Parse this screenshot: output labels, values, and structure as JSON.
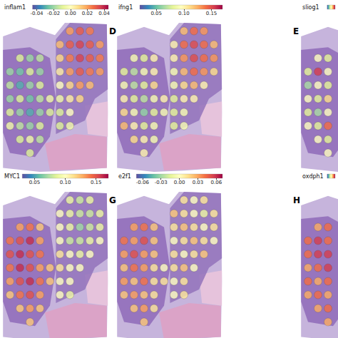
{
  "chart_data": [
    {
      "type": "scatter",
      "title": "inflam1",
      "tick_labels": false,
      "colorbar": {
        "range": [
          -0.045,
          0.045
        ],
        "ticks": [
          -0.04,
          -0.02,
          {
            "value": 0,
            "label": "0.00"
          },
          0.02,
          0.04
        ]
      },
      "cells": [
        [
          null,
          null,
          null,
          null,
          null,
          null,
          0.02,
          0.03,
          0.025,
          null
        ],
        [
          null,
          null,
          null,
          null,
          null,
          0.015,
          0.03,
          0.035,
          0.03,
          0.02
        ],
        [
          null,
          -0.01,
          -0.02,
          -0.015,
          null,
          0.01,
          0.025,
          0.035,
          0.03,
          0.025
        ],
        [
          -0.02,
          -0.025,
          -0.01,
          -0.02,
          null,
          0.005,
          0.02,
          0.03,
          0.025,
          0.02
        ],
        [
          -0.015,
          -0.03,
          -0.02,
          -0.01,
          null,
          0.0,
          0.01,
          0.02,
          0.015,
          null
        ],
        [
          -0.02,
          -0.01,
          -0.025,
          -0.015,
          -0.005,
          -0.005,
          0.005,
          0.01,
          null,
          null
        ],
        [
          -0.01,
          -0.02,
          -0.03,
          -0.02,
          -0.01,
          -0.01,
          0.0,
          null,
          null,
          null
        ],
        [
          -0.005,
          -0.015,
          -0.02,
          -0.01,
          null,
          -0.01,
          -0.005,
          null,
          null,
          null
        ],
        [
          null,
          -0.01,
          -0.005,
          -0.015,
          null,
          null,
          null,
          null,
          null,
          null
        ],
        [
          null,
          null,
          -0.01,
          null,
          null,
          null,
          null,
          null,
          null,
          null
        ]
      ]
    },
    {
      "type": "scatter",
      "title": "ifng1",
      "panel": "D",
      "tick_labels": false,
      "colorbar": {
        "range": [
          0.02,
          0.17
        ],
        "ticks": [
          0.05,
          {
            "value": 0.1,
            "label": "0.10"
          },
          0.15
        ]
      },
      "cells": [
        [
          null,
          null,
          null,
          null,
          null,
          null,
          0.12,
          0.14,
          0.13,
          null
        ],
        [
          null,
          null,
          null,
          null,
          null,
          0.1,
          0.14,
          0.15,
          0.14,
          0.12
        ],
        [
          null,
          0.09,
          0.08,
          0.1,
          null,
          0.1,
          0.13,
          0.15,
          0.14,
          0.13
        ],
        [
          0.08,
          0.07,
          0.09,
          0.1,
          null,
          0.09,
          0.12,
          0.14,
          0.13,
          0.11
        ],
        [
          0.09,
          0.07,
          0.08,
          0.11,
          null,
          0.09,
          0.11,
          0.12,
          0.1,
          null
        ],
        [
          0.1,
          0.08,
          0.07,
          0.09,
          0.1,
          0.08,
          0.1,
          0.1,
          null,
          null
        ],
        [
          0.11,
          0.09,
          0.06,
          0.08,
          0.09,
          0.08,
          0.09,
          null,
          null,
          null
        ],
        [
          0.12,
          0.1,
          0.08,
          0.09,
          null,
          0.08,
          0.09,
          null,
          null,
          null
        ],
        [
          null,
          0.11,
          0.1,
          0.09,
          null,
          null,
          null,
          null,
          null,
          null
        ],
        [
          null,
          null,
          0.1,
          null,
          null,
          null,
          null,
          null,
          null,
          null
        ]
      ]
    },
    {
      "type": "scatter",
      "title": "sliog1",
      "panel": "E",
      "tick_labels": false,
      "colorbar": {
        "range": [
          0.0,
          0.1
        ]
      },
      "cells": [
        [
          null,
          null,
          null
        ],
        [
          null,
          null,
          null
        ],
        [
          null,
          0.05,
          0.04
        ],
        [
          0.04,
          0.09,
          0.05
        ],
        [
          0.03,
          0.05,
          0.04
        ],
        [
          0.05,
          0.04,
          0.06
        ],
        [
          0.04,
          0.03,
          0.05
        ],
        [
          0.05,
          0.04,
          0.08
        ],
        [
          null,
          0.05,
          0.04
        ],
        [
          null,
          null,
          0.05
        ]
      ]
    },
    {
      "type": "scatter",
      "title": "MYC1",
      "tick_labels": false,
      "colorbar": {
        "range": [
          0.03,
          0.17
        ],
        "ticks": [
          0.05,
          {
            "value": 0.1,
            "label": "0.10"
          },
          0.15
        ]
      },
      "cells": [
        [
          null,
          null,
          null,
          null,
          null,
          null,
          0.09,
          0.08,
          0.09,
          null
        ],
        [
          null,
          null,
          null,
          null,
          null,
          0.1,
          0.09,
          0.08,
          0.08,
          0.09
        ],
        [
          null,
          0.13,
          0.14,
          0.12,
          null,
          0.1,
          0.09,
          0.07,
          0.08,
          0.09
        ],
        [
          0.14,
          0.15,
          0.16,
          0.13,
          null,
          0.1,
          0.08,
          0.08,
          0.09,
          0.1
        ],
        [
          0.15,
          0.16,
          0.15,
          0.14,
          null,
          0.11,
          0.1,
          0.09,
          0.1,
          null
        ],
        [
          0.14,
          0.16,
          0.15,
          0.13,
          0.12,
          0.11,
          0.1,
          0.1,
          null,
          null
        ],
        [
          0.13,
          0.15,
          0.16,
          0.14,
          0.12,
          0.1,
          0.1,
          null,
          null,
          null
        ],
        [
          0.12,
          0.14,
          0.15,
          0.13,
          null,
          0.1,
          0.09,
          null,
          null,
          null
        ],
        [
          null,
          0.12,
          0.13,
          0.12,
          null,
          null,
          null,
          null,
          null,
          null
        ],
        [
          null,
          null,
          0.12,
          null,
          null,
          null,
          null,
          null,
          null,
          null
        ]
      ]
    },
    {
      "type": "scatter",
      "title": "e2f1",
      "panel": "G",
      "tick_labels": false,
      "colorbar": {
        "range": [
          -0.07,
          0.07
        ],
        "ticks": [
          -0.06,
          -0.03,
          {
            "value": 0,
            "label": "0.00"
          },
          0.03,
          0.06
        ]
      },
      "cells": [
        [
          null,
          null,
          null,
          null,
          null,
          null,
          0.01,
          0.0,
          0.01,
          null
        ],
        [
          null,
          null,
          null,
          null,
          null,
          0.02,
          0.01,
          0.0,
          -0.01,
          0.01
        ],
        [
          null,
          0.03,
          0.04,
          0.02,
          null,
          0.01,
          0.02,
          0.01,
          0.0,
          0.01
        ],
        [
          0.04,
          0.03,
          0.05,
          0.02,
          null,
          0.0,
          0.01,
          0.02,
          0.01,
          0.0
        ],
        [
          0.03,
          0.05,
          0.03,
          0.02,
          null,
          0.01,
          0.0,
          0.01,
          0.02,
          null
        ],
        [
          0.02,
          0.04,
          0.03,
          0.01,
          0.0,
          0.01,
          0.02,
          0.0,
          null,
          null
        ],
        [
          0.03,
          0.02,
          0.04,
          0.01,
          0.01,
          0.0,
          0.01,
          null,
          null,
          null
        ],
        [
          0.02,
          0.03,
          0.02,
          0.01,
          null,
          0.0,
          0.01,
          null,
          null,
          null
        ],
        [
          null,
          0.02,
          0.03,
          0.01,
          null,
          null,
          null,
          null,
          null,
          null
        ],
        [
          null,
          null,
          0.02,
          null,
          null,
          null,
          null,
          null,
          null,
          null
        ]
      ]
    },
    {
      "type": "scatter",
      "title": "oxdph1",
      "panel": "H",
      "tick_labels": false,
      "colorbar": {
        "range": [
          0.0,
          0.1
        ]
      },
      "cells": [
        [
          null,
          null,
          null
        ],
        [
          null,
          null,
          null
        ],
        [
          null,
          0.07,
          0.08
        ],
        [
          0.08,
          0.09,
          0.08
        ],
        [
          0.08,
          0.09,
          0.09
        ],
        [
          0.07,
          0.08,
          0.09
        ],
        [
          0.08,
          0.07,
          0.08
        ],
        [
          0.07,
          0.08,
          0.07
        ],
        [
          null,
          0.07,
          0.08
        ],
        [
          null,
          null,
          0.07
        ]
      ]
    }
  ]
}
